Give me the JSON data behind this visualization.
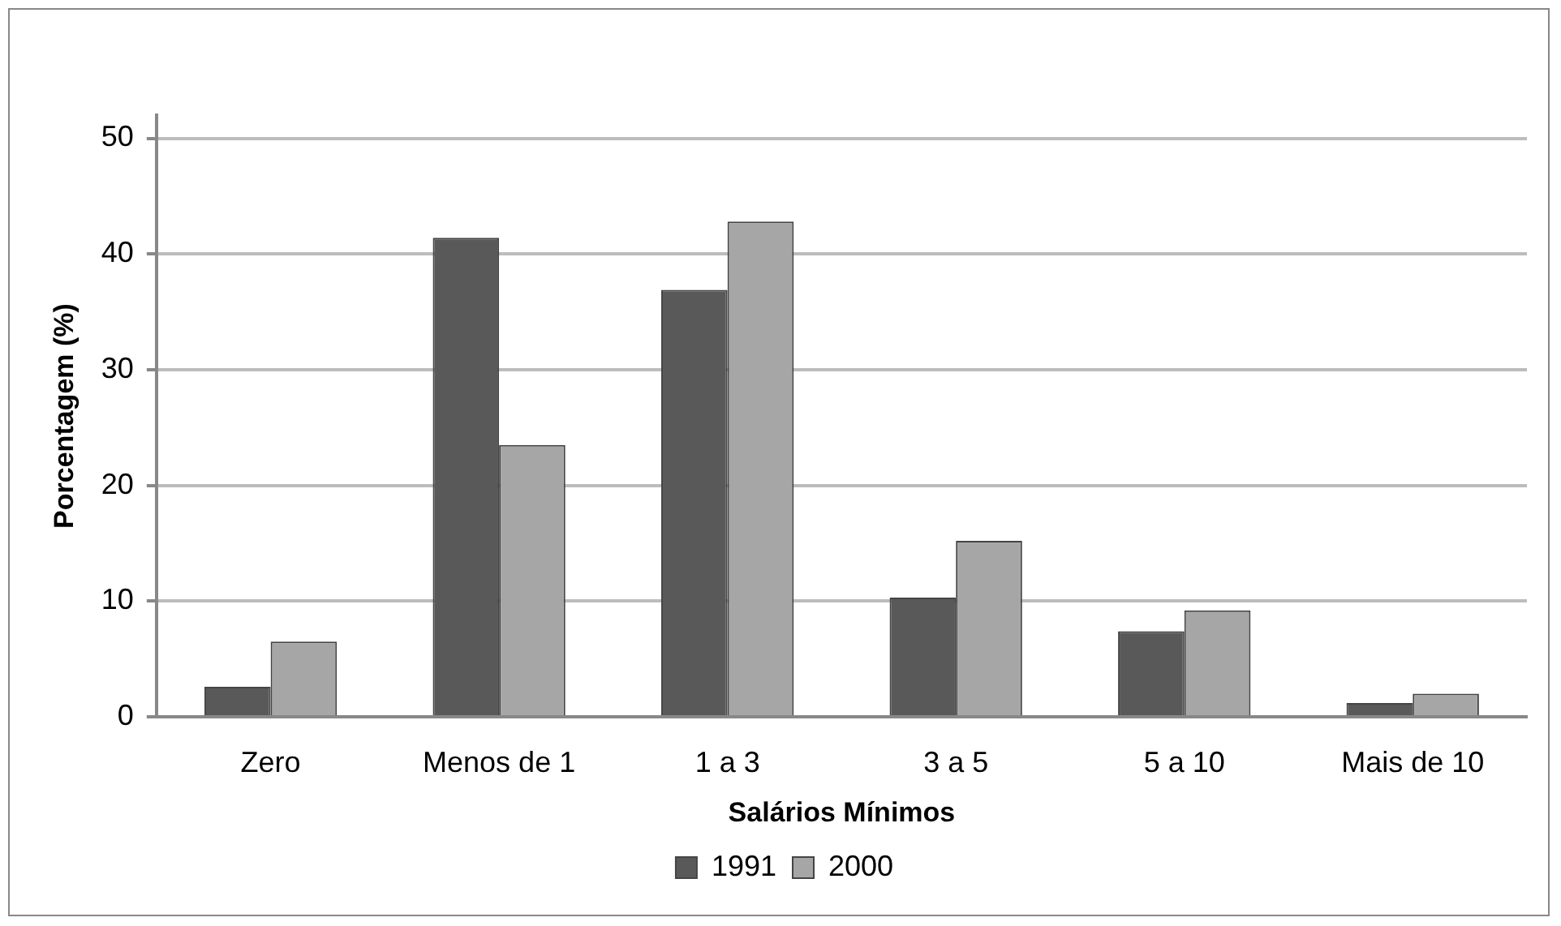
{
  "chart_data": {
    "type": "bar",
    "xlabel": "Salários Mínimos",
    "ylabel": "Porcentagem (%)",
    "categories": [
      "Zero",
      "Menos de 1",
      "1 a 3",
      "3 a 5",
      "5 a 10",
      "Mais de 10"
    ],
    "series": [
      {
        "name": "1991",
        "color": "#595959",
        "values": [
          2.6,
          41.4,
          36.9,
          10.3,
          7.4,
          1.2
        ]
      },
      {
        "name": "2000",
        "color": "#a6a6a6",
        "values": [
          6.5,
          23.5,
          42.8,
          15.2,
          9.2,
          2.0
        ]
      }
    ],
    "ylim": [
      0,
      52
    ],
    "yticks": [
      0,
      10,
      20,
      30,
      40,
      50
    ],
    "grid": "y",
    "legend": "bottom"
  }
}
